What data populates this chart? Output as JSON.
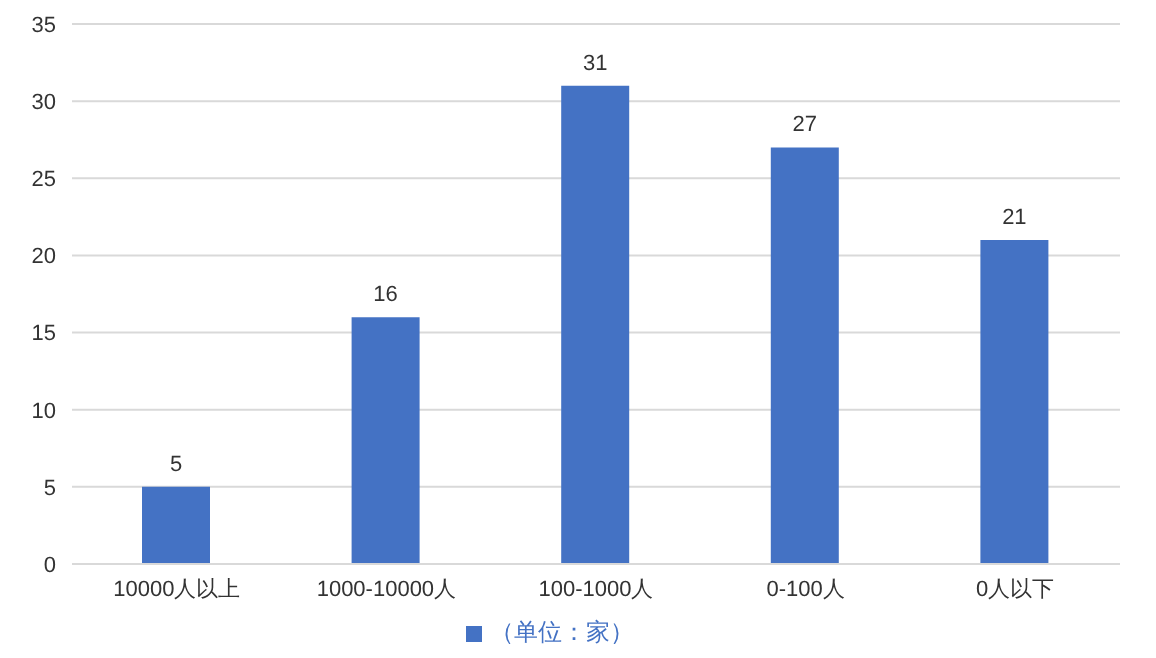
{
  "chart_data": {
    "type": "bar",
    "categories": [
      "10000人以上",
      "1000-10000人",
      "100-1000人",
      "0-100人",
      "0人以下"
    ],
    "series": [
      {
        "name": "（单位：家）",
        "color": "#4472c4",
        "values": [
          5,
          16,
          31,
          27,
          21
        ]
      }
    ],
    "ylim": [
      0,
      35
    ],
    "yticks": [
      0,
      5,
      10,
      15,
      20,
      25,
      30,
      35
    ],
    "grid": "y",
    "legend": "bottom",
    "data_labels": true
  }
}
